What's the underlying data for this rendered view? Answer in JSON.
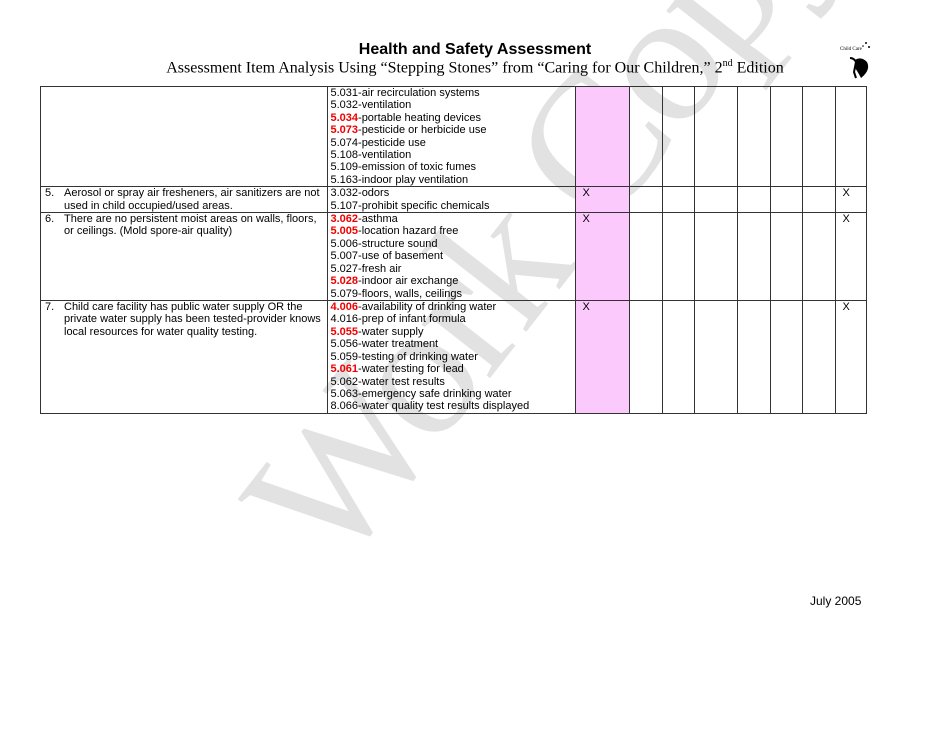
{
  "header": {
    "title": "Health and Safety Assessment",
    "subtitle_pre": "Assessment Item Analysis Using “Stepping Stones” from “Caring for Our Children,” 2",
    "subtitle_sup": "nd",
    "subtitle_post": " Edition",
    "logo_text": "Healthy Child Care"
  },
  "watermark": "Work Copy",
  "highlight_color": "#e00000",
  "pink_column_color": "#fcc9fc",
  "rows": [
    {
      "num": "",
      "item": "",
      "standards": [
        {
          "code": "5.031",
          "label": "-air recirculation systems",
          "hl": false
        },
        {
          "code": "5.032",
          "label": "-ventilation",
          "hl": false
        },
        {
          "code": "5.034",
          "label": "-portable heating devices",
          "hl": true
        },
        {
          "code": "5.073",
          "label": "-pesticide or herbicide use",
          "hl": true
        },
        {
          "code": "5.074",
          "label": "-pesticide use",
          "hl": false
        },
        {
          "code": "5.108",
          "label": "-ventilation",
          "hl": false
        },
        {
          "code": "5.109",
          "label": "-emission of toxic fumes",
          "hl": false
        },
        {
          "code": "5.163",
          "label": "-indoor play ventilation",
          "hl": false
        }
      ],
      "marks": [
        "",
        "",
        "",
        "",
        "",
        "",
        "",
        ""
      ]
    },
    {
      "num": "5.",
      "item": "Aerosol or spray air fresheners, air sanitizers are not used in child occupied/used areas.",
      "standards": [
        {
          "code": "3.032",
          "label": "-odors",
          "hl": false
        },
        {
          "code": "5.107",
          "label": "-prohibit specific chemicals",
          "hl": false
        }
      ],
      "marks": [
        "X",
        "",
        "",
        "",
        "",
        "",
        "",
        "X"
      ]
    },
    {
      "num": "6.",
      "item": "There are no persistent moist areas on walls, floors, or ceilings. (Mold spore-air quality)",
      "standards": [
        {
          "code": "3.062",
          "label": "-asthma",
          "hl": true
        },
        {
          "code": "5.005",
          "label": "-location hazard free",
          "hl": true
        },
        {
          "code": "5.006",
          "label": "-structure sound",
          "hl": false
        },
        {
          "code": "5.007",
          "label": "-use of basement",
          "hl": false
        },
        {
          "code": "5.027",
          "label": "-fresh air",
          "hl": false
        },
        {
          "code": "5.028",
          "label": "-indoor air exchange",
          "hl": true
        },
        {
          "code": "5.079",
          "label": "-floors, walls, ceilings",
          "hl": false
        }
      ],
      "marks": [
        "X",
        "",
        "",
        "",
        "",
        "",
        "",
        "X"
      ]
    },
    {
      "num": "7.",
      "item": "Child care facility has public water supply OR the private water supply has been tested-provider knows local resources for water quality testing.",
      "standards": [
        {
          "code": "4.006",
          "label": "-availability of drinking water",
          "hl": true
        },
        {
          "code": "4.016",
          "label": "-prep of infant formula",
          "hl": false
        },
        {
          "code": "5.055",
          "label": "-water supply",
          "hl": true
        },
        {
          "code": "5.056",
          "label": "-water treatment",
          "hl": false
        },
        {
          "code": "5.059",
          "label": "-testing of drinking water",
          "hl": false
        },
        {
          "code": "5.061",
          "label": "-water testing for lead",
          "hl": true
        },
        {
          "code": "5.062",
          "label": "-water test results",
          "hl": false
        },
        {
          "code": "5.063",
          "label": "-emergency safe drinking water",
          "hl": false
        },
        {
          "code": "8.066",
          "label": "-water quality test results displayed",
          "hl": false
        }
      ],
      "marks": [
        "X",
        "",
        "",
        "",
        "",
        "",
        "",
        "X"
      ]
    }
  ],
  "footer": "July 2005"
}
